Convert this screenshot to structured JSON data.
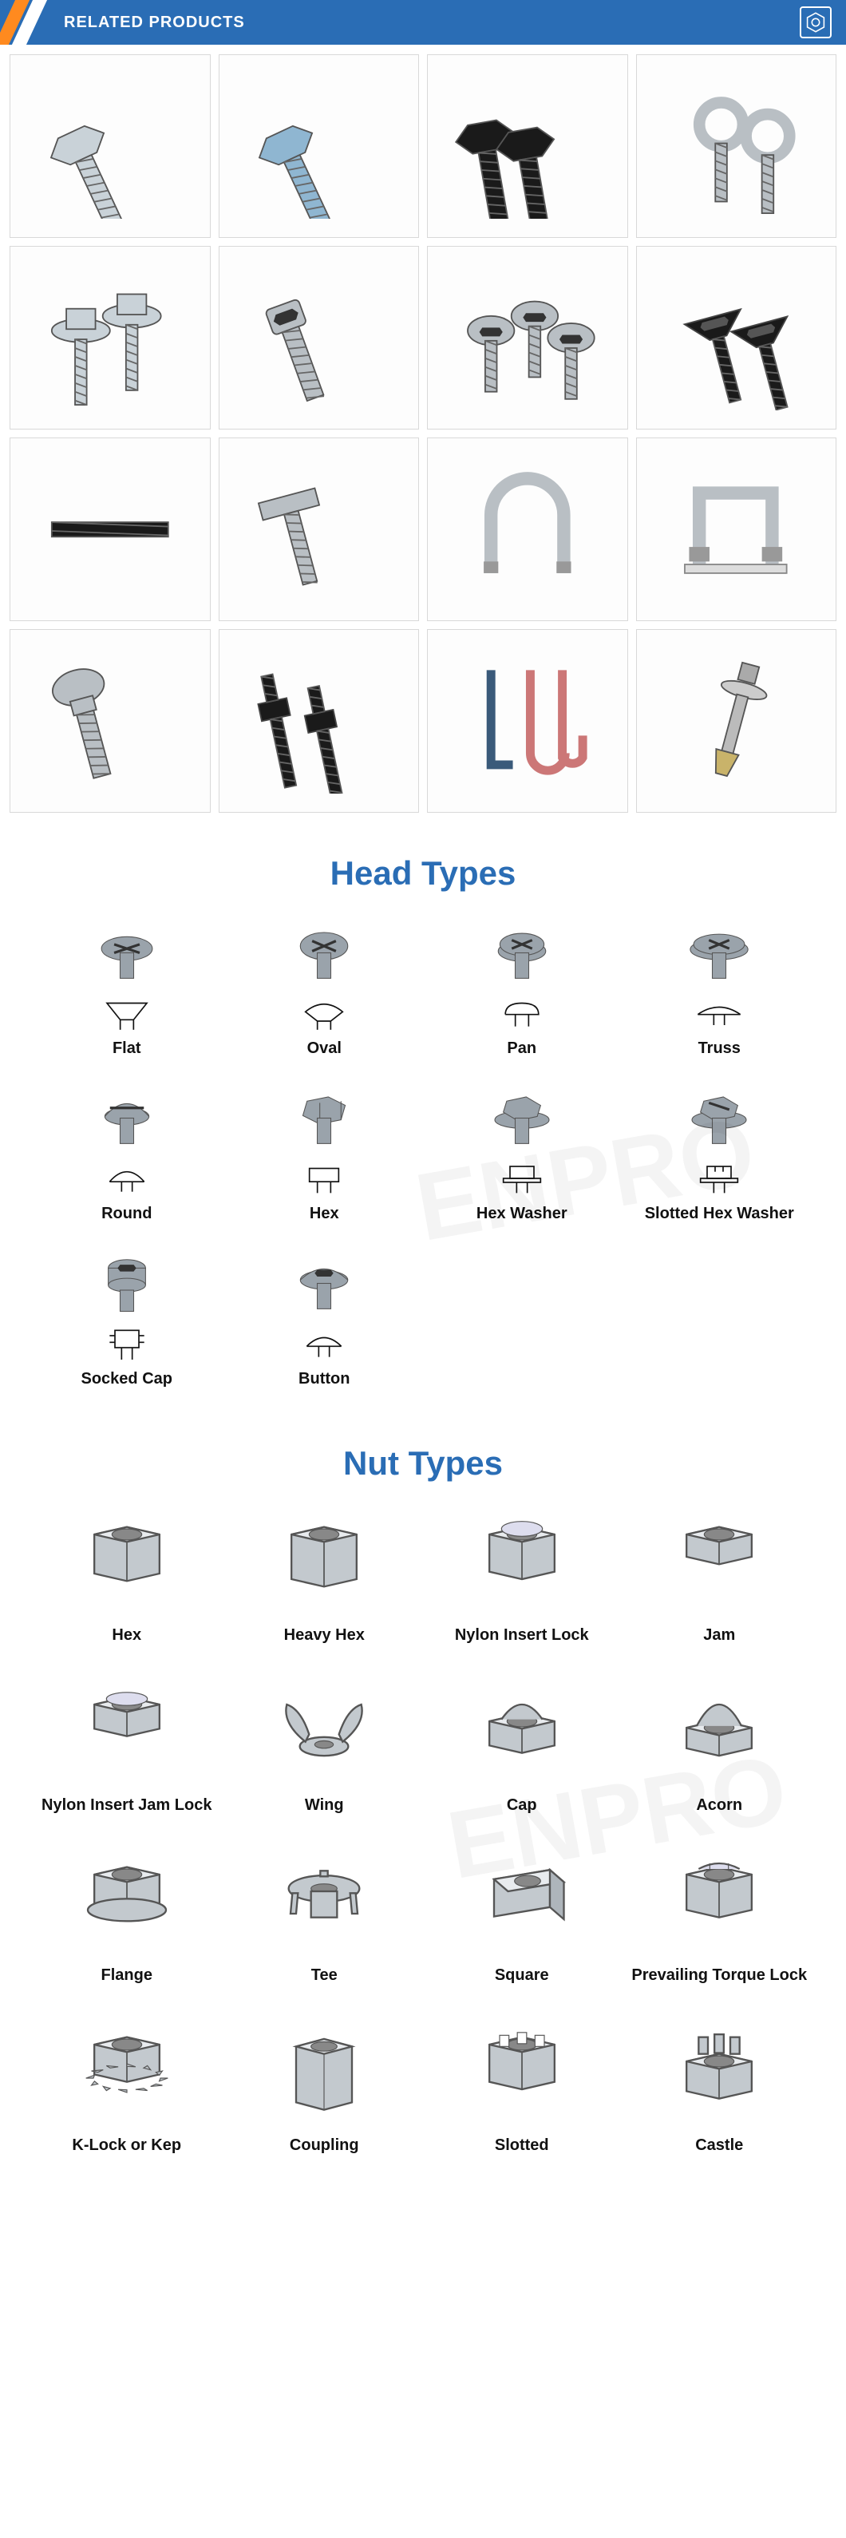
{
  "header": {
    "title": "RELATED PRODUCTS",
    "bg_color": "#2a6db5",
    "accent1": "#ff8a1f",
    "accent2": "#ffffff",
    "text_color": "#ffffff"
  },
  "product_grid": {
    "columns": 4,
    "rows": 4,
    "cell_border": "#d9d9d9",
    "items": [
      {
        "name": "hex-bolt-zinc",
        "color": "#c9d2d8",
        "shape": "hex-bolt"
      },
      {
        "name": "hex-bolt-blue-zinc",
        "color": "#8fb6d1",
        "shape": "hex-bolt"
      },
      {
        "name": "hex-bolt-black-pair",
        "color": "#1a1a1a",
        "shape": "hex-bolt-pair"
      },
      {
        "name": "eye-bolt-pair",
        "color": "#b9bfc4",
        "shape": "eye-bolt-pair"
      },
      {
        "name": "flange-bolt-pair",
        "color": "#c9d2d8",
        "shape": "flange-bolt-pair"
      },
      {
        "name": "socket-head-bolt",
        "color": "#b9bfc4",
        "shape": "socket-head"
      },
      {
        "name": "button-head-trio",
        "color": "#b9bfc4",
        "shape": "button-head-trio"
      },
      {
        "name": "countersunk-black",
        "color": "#1a1a1a",
        "shape": "countersunk-pair"
      },
      {
        "name": "threaded-rod-black",
        "color": "#1a1a1a",
        "shape": "threaded-rod"
      },
      {
        "name": "t-bolt",
        "color": "#b9bfc4",
        "shape": "t-bolt"
      },
      {
        "name": "u-bolt",
        "color": "#b9bfc4",
        "shape": "u-bolt"
      },
      {
        "name": "u-bolt-square",
        "color": "#b9bfc4",
        "shape": "u-bolt-square"
      },
      {
        "name": "carriage-bolt",
        "color": "#b9bfc4",
        "shape": "carriage-bolt"
      },
      {
        "name": "stud-bolt-black",
        "color": "#1a1a1a",
        "shape": "stud-bolt-pair"
      },
      {
        "name": "j-l-bolts",
        "color": "#3a5a7a",
        "shape": "j-l-bolts"
      },
      {
        "name": "anchor-bolt",
        "color": "#c9b36a",
        "shape": "anchor-bolt"
      }
    ]
  },
  "head_types": {
    "title": "Head Types",
    "title_color": "#2a6db5",
    "items": [
      {
        "label": "Flat",
        "shape": "flat"
      },
      {
        "label": "Oval",
        "shape": "oval"
      },
      {
        "label": "Pan",
        "shape": "pan"
      },
      {
        "label": "Truss",
        "shape": "truss"
      },
      {
        "label": "Round",
        "shape": "round"
      },
      {
        "label": "Hex",
        "shape": "hex"
      },
      {
        "label": "Hex Washer",
        "shape": "hex-washer"
      },
      {
        "label": "Slotted Hex Washer",
        "shape": "slotted-hex-washer"
      },
      {
        "label": "Socked Cap",
        "shape": "socket-cap"
      },
      {
        "label": "Button",
        "shape": "button"
      }
    ],
    "icon_color": "#9aa3ab",
    "outline_color": "#111111"
  },
  "nut_types": {
    "title": "Nut Types",
    "title_color": "#2a6db5",
    "items": [
      {
        "label": "Hex",
        "shape": "hex-nut"
      },
      {
        "label": "Heavy Hex",
        "shape": "heavy-hex-nut"
      },
      {
        "label": "Nylon Insert Lock",
        "shape": "nylon-lock-nut"
      },
      {
        "label": "Jam",
        "shape": "jam-nut"
      },
      {
        "label": "Nylon Insert Jam Lock",
        "shape": "nylon-jam-nut"
      },
      {
        "label": "Wing",
        "shape": "wing-nut"
      },
      {
        "label": "Cap",
        "shape": "cap-nut"
      },
      {
        "label": "Acorn",
        "shape": "acorn-nut"
      },
      {
        "label": "Flange",
        "shape": "flange-nut"
      },
      {
        "label": "Tee",
        "shape": "tee-nut"
      },
      {
        "label": "Square",
        "shape": "square-nut"
      },
      {
        "label": "Prevailing Torque Lock",
        "shape": "torque-lock-nut"
      },
      {
        "label": "K-Lock or Kep",
        "shape": "kep-nut"
      },
      {
        "label": "Coupling",
        "shape": "coupling-nut"
      },
      {
        "label": "Slotted",
        "shape": "slotted-nut"
      },
      {
        "label": "Castle",
        "shape": "castle-nut"
      }
    ],
    "icon_fill": "#c3c9ce",
    "icon_stroke": "#555555"
  }
}
